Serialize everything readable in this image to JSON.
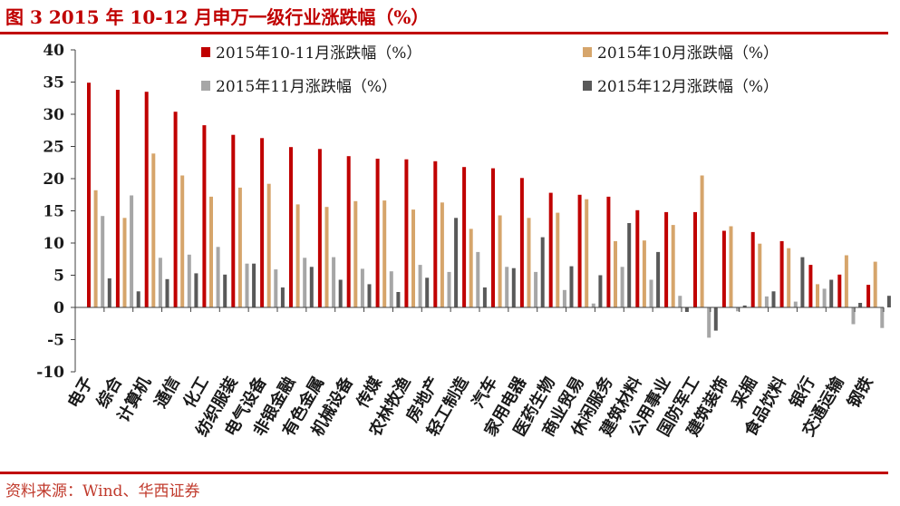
{
  "figure": {
    "title": "图 3   2015 年 10-12 月申万一级行业涨跌幅（%）",
    "source": "资料来源：Wind、华西证券"
  },
  "colors": {
    "accent": "#c00000",
    "s1": "#c00000",
    "s2": "#d6a56b",
    "s3": "#a6a6a6",
    "s4": "#595959",
    "axis": "#404040",
    "label": "#1a1a1a"
  },
  "chart_data": {
    "type": "bar",
    "ylim": [
      -10,
      40
    ],
    "yticks": [
      "40",
      "35",
      "30",
      "25",
      "20",
      "15",
      "10",
      "5",
      "0",
      "-5",
      "-10"
    ],
    "grid": false,
    "legend_position": "top-right",
    "categories": [
      "电子",
      "综合",
      "计算机",
      "通信",
      "化工",
      "纺织服装",
      "电气设备",
      "非银金融",
      "有色金属",
      "机械设备",
      "传媒",
      "农林牧渔",
      "房地产",
      "轻工制造",
      "汽车",
      "家用电器",
      "医药生物",
      "商业贸易",
      "休闲服务",
      "建筑材料",
      "公用事业",
      "国防军工",
      "建筑装饰",
      "采掘",
      "食品饮料",
      "银行",
      "交通运输",
      "钢铁"
    ],
    "series": [
      {
        "name": "2015年10-11月涨跌幅（%）",
        "color": "#c00000",
        "values": [
          34.9,
          33.8,
          33.5,
          30.4,
          28.3,
          26.8,
          26.3,
          24.9,
          24.6,
          23.5,
          23.1,
          23.0,
          22.7,
          21.8,
          21.6,
          20.1,
          17.8,
          17.5,
          17.2,
          15.1,
          14.8,
          14.8,
          11.9,
          11.7,
          10.3,
          6.6,
          5.1,
          3.5
        ]
      },
      {
        "name": "2015年10月涨跌幅（%）",
        "color": "#d6a56b",
        "values": [
          18.2,
          13.9,
          23.9,
          20.5,
          17.2,
          18.6,
          19.2,
          16.0,
          15.6,
          16.5,
          16.6,
          15.2,
          16.3,
          12.2,
          14.3,
          13.9,
          14.7,
          16.8,
          10.3,
          10.4,
          12.8,
          20.5,
          12.6,
          9.9,
          9.2,
          3.6,
          8.1,
          7.1
        ]
      },
      {
        "name": "2015年11月涨跌幅（%）",
        "color": "#a6a6a6",
        "values": [
          14.2,
          17.4,
          7.7,
          8.2,
          9.4,
          6.8,
          5.9,
          7.7,
          7.8,
          6.0,
          5.6,
          6.6,
          5.5,
          8.6,
          6.3,
          5.5,
          2.7,
          0.6,
          6.3,
          4.3,
          1.8,
          -4.7,
          -0.6,
          1.7,
          0.9,
          2.9,
          -2.6,
          -3.2
        ]
      },
      {
        "name": "2015年12月涨跌幅（%）",
        "color": "#595959",
        "values": [
          4.5,
          2.5,
          4.4,
          5.3,
          5.1,
          6.8,
          3.1,
          6.3,
          4.3,
          3.6,
          2.4,
          4.6,
          13.9,
          3.1,
          6.1,
          10.9,
          6.4,
          5.0,
          13.1,
          8.6,
          -0.7,
          -3.6,
          0.3,
          2.5,
          7.8,
          4.3,
          0.7,
          1.8
        ]
      }
    ]
  }
}
